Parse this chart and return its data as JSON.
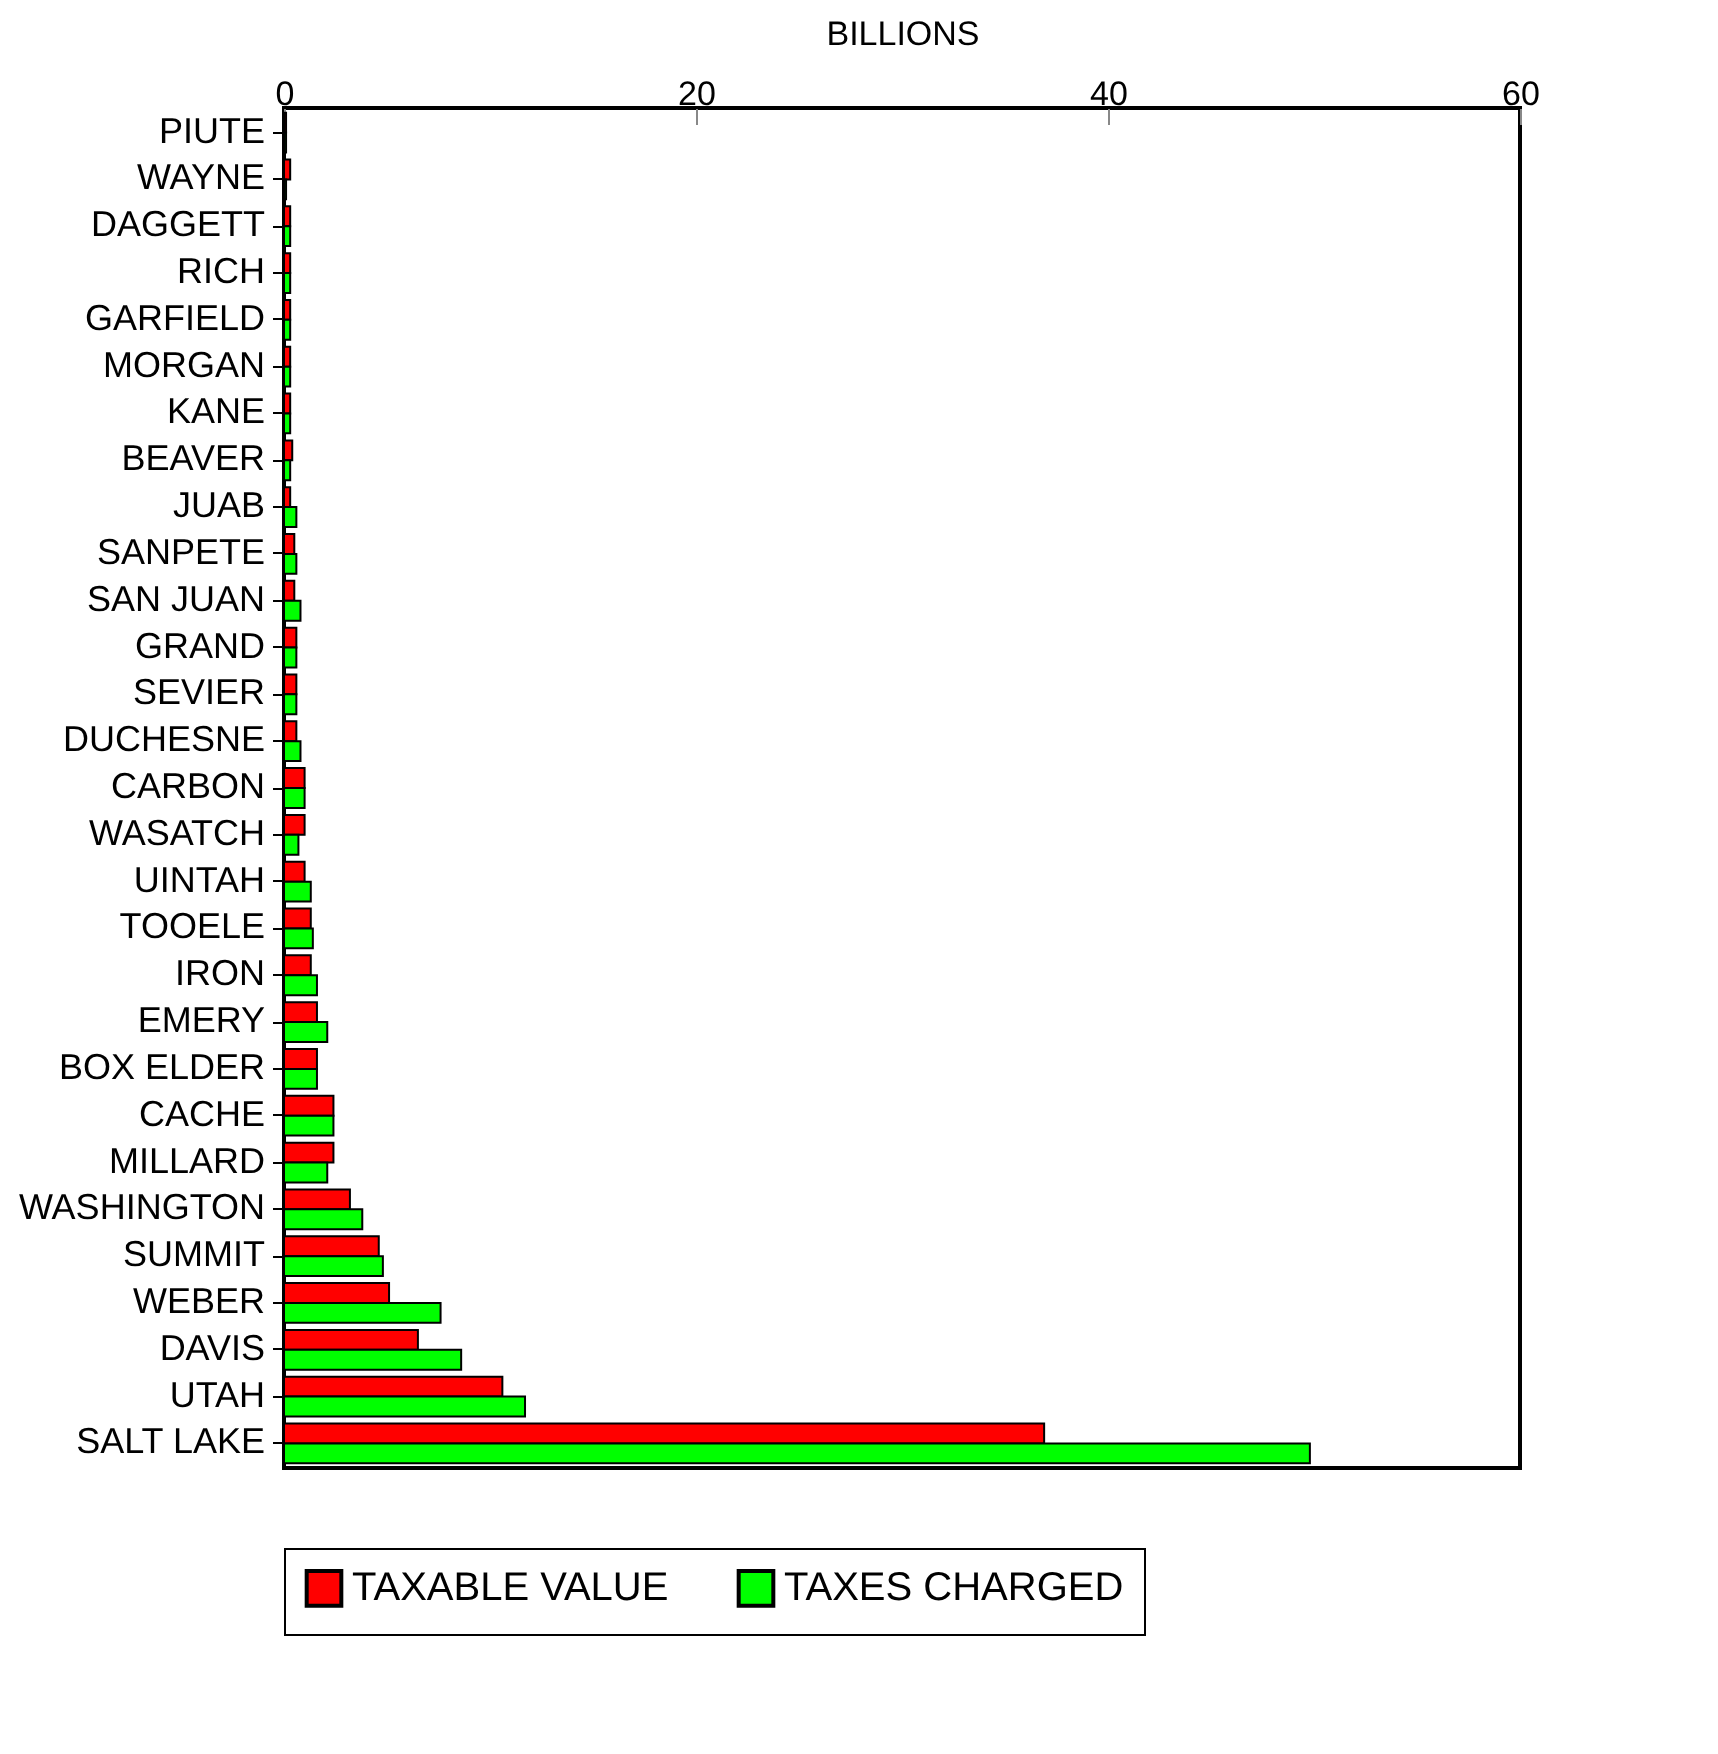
{
  "chart_data": {
    "type": "bar",
    "orientation": "horizontal",
    "xlabel": "BILLIONS",
    "categories": [
      "PIUTE",
      "WAYNE",
      "DAGGETT",
      "RICH",
      "GARFIELD",
      "MORGAN",
      "KANE",
      "BEAVER",
      "JUAB",
      "SANPETE",
      "SAN JUAN",
      "GRAND",
      "SEVIER",
      "DUCHESNE",
      "CARBON",
      "WASATCH",
      "UINTAH",
      "TOOELE",
      "IRON",
      "EMERY",
      "BOX ELDER",
      "CACHE",
      "MILLARD",
      "WASHINGTON",
      "SUMMIT",
      "WEBER",
      "DAVIS",
      "UTAH",
      "SALT LAKE"
    ],
    "series": [
      {
        "name": "TAXABLE VALUE",
        "color": "#ff0000",
        "values": [
          0.1,
          0.3,
          0.3,
          0.3,
          0.3,
          0.3,
          0.3,
          0.4,
          0.3,
          0.5,
          0.5,
          0.6,
          0.6,
          0.6,
          1.0,
          1.0,
          1.0,
          1.3,
          1.3,
          1.6,
          1.6,
          2.4,
          2.4,
          3.2,
          4.6,
          5.1,
          6.5,
          10.6,
          36.9
        ]
      },
      {
        "name": "TAXES CHARGED",
        "color": "#00ff00",
        "values": [
          0.1,
          0.1,
          0.3,
          0.3,
          0.3,
          0.3,
          0.3,
          0.3,
          0.6,
          0.6,
          0.8,
          0.6,
          0.6,
          0.8,
          1.0,
          0.7,
          1.3,
          1.4,
          1.6,
          2.1,
          1.6,
          2.4,
          2.1,
          3.8,
          4.8,
          7.6,
          8.6,
          11.7,
          49.8
        ]
      }
    ],
    "xlim": [
      0,
      60
    ],
    "xticks": [
      0,
      20,
      40,
      60
    ],
    "grid": false,
    "legend": "bottom"
  }
}
